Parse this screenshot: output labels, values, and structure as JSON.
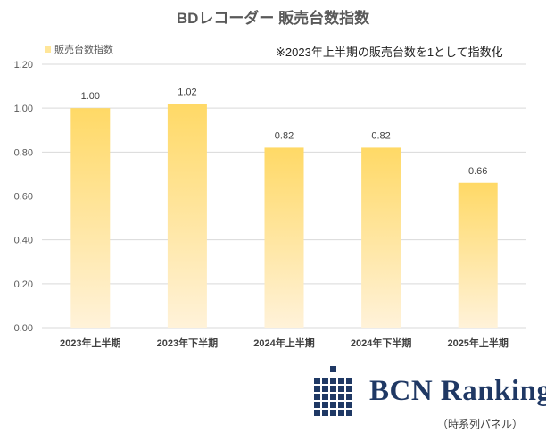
{
  "title": "BDレコーダー 販売台数指数",
  "note": "※2023年上半期の販売台数を1として指数化",
  "legend": {
    "label": "販売台数指数"
  },
  "colors": {
    "bar_top": "#FFD966",
    "bar_bottom": "#FFF2D9",
    "grid": "#D9D9D9",
    "logo": "#1F3864"
  },
  "chart_data": {
    "type": "bar",
    "title": "BDレコーダー 販売台数指数",
    "categories": [
      "2023年上半期",
      "2023年下半期",
      "2024年上半期",
      "2024年下半期",
      "2025年上半期"
    ],
    "series": [
      {
        "name": "販売台数指数",
        "values": [
          1.0,
          1.02,
          0.82,
          0.82,
          0.66
        ]
      }
    ],
    "data_labels": [
      "1.00",
      "1.02",
      "0.82",
      "0.82",
      "0.66"
    ],
    "yticks": [
      "0.00",
      "0.20",
      "0.40",
      "0.60",
      "0.80",
      "1.00",
      "1.20"
    ],
    "ylim": [
      0,
      1.2
    ],
    "grid": true,
    "legend_position": "top-left"
  },
  "logo": {
    "text": "BCN Ranking",
    "subtitle": "（時系列パネル）"
  }
}
